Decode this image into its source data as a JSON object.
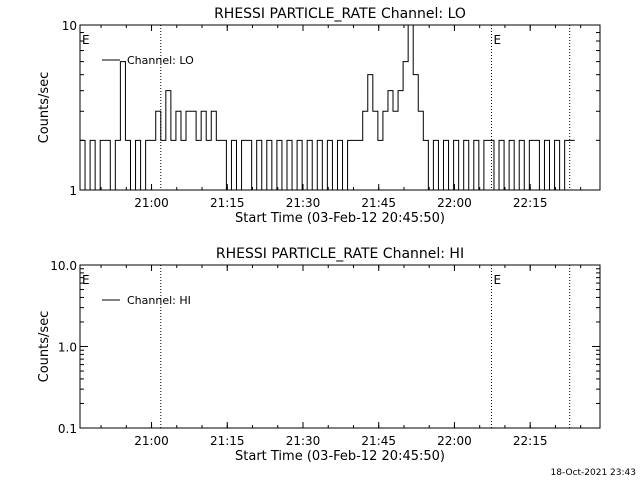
{
  "footer": {
    "timestamp": "18-Oct-2021 23:43"
  },
  "chart_data": [
    {
      "type": "line",
      "title": "RHESSI PARTICLE_RATE Channel: LO",
      "xlabel": "Start Time (03-Feb-12 20:45:50)",
      "ylabel": "Counts/sec",
      "x_unit": "minutes after 20:45:50",
      "xlim": [
        0,
        103
      ],
      "ylim": [
        1,
        10
      ],
      "y_scale": "log",
      "x_ticks": [
        {
          "value": 14.17,
          "label": "21:00"
        },
        {
          "value": 29.17,
          "label": "21:15"
        },
        {
          "value": 44.17,
          "label": "21:30"
        },
        {
          "value": 59.17,
          "label": "21:45"
        },
        {
          "value": 74.17,
          "label": "22:00"
        },
        {
          "value": 89.17,
          "label": "22:15"
        }
      ],
      "y_ticks": [
        {
          "value": 1,
          "label": "1"
        },
        {
          "value": 10,
          "label": "10"
        }
      ],
      "vlines": [
        16.0,
        81.5,
        97.0
      ],
      "markers": [
        {
          "x": 0.2,
          "label": "E"
        },
        {
          "x": 81.7,
          "label": "E"
        }
      ],
      "legend": {
        "position": "top-left",
        "label": "Channel: LO"
      },
      "series": [
        {
          "name": "Channel: LO",
          "x": [
            0,
            1,
            2,
            3,
            4,
            5,
            6,
            7,
            8,
            9,
            10,
            11,
            12,
            13,
            14,
            15,
            16,
            17,
            18,
            19,
            20,
            21,
            22,
            23,
            24,
            25,
            26,
            27,
            28,
            29,
            30,
            31,
            32,
            33,
            34,
            35,
            36,
            37,
            38,
            39,
            40,
            41,
            42,
            43,
            44,
            45,
            46,
            47,
            48,
            49,
            50,
            51,
            52,
            53,
            54,
            55,
            56,
            57,
            58,
            59,
            60,
            61,
            62,
            63,
            64,
            65,
            66,
            67,
            68,
            69,
            70,
            71,
            72,
            73,
            74,
            75,
            76,
            77,
            78,
            79,
            80,
            81,
            82,
            83,
            84,
            85,
            86,
            87,
            88,
            89,
            90,
            91,
            92,
            93,
            94,
            95,
            96,
            97
          ],
          "y": [
            2,
            1,
            2,
            1,
            2,
            2,
            1,
            2,
            6,
            2,
            1,
            2,
            1,
            2,
            2,
            3,
            2,
            4,
            2,
            3,
            2,
            3,
            3,
            2,
            3,
            2,
            3,
            2,
            2,
            1,
            2,
            1,
            2,
            2,
            1,
            2,
            1,
            2,
            1,
            2,
            1,
            2,
            1,
            2,
            1,
            2,
            1,
            2,
            1,
            2,
            1,
            2,
            1,
            2,
            2,
            2,
            3,
            5,
            3,
            2,
            3,
            4,
            3,
            4,
            6,
            10,
            5,
            3,
            2,
            1,
            2,
            1,
            2,
            1,
            2,
            1,
            2,
            1,
            2,
            1,
            2,
            2,
            1,
            2,
            1,
            2,
            1,
            2,
            1,
            2,
            2,
            1,
            2,
            1,
            2,
            1,
            2,
            2
          ]
        }
      ]
    },
    {
      "type": "line",
      "title": "RHESSI PARTICLE_RATE Channel: HI",
      "xlabel": "Start Time (03-Feb-12 20:45:50)",
      "ylabel": "Counts/sec",
      "x_unit": "minutes after 20:45:50",
      "xlim": [
        0,
        103
      ],
      "ylim": [
        0.1,
        10
      ],
      "y_scale": "log",
      "x_ticks": [
        {
          "value": 14.17,
          "label": "21:00"
        },
        {
          "value": 29.17,
          "label": "21:15"
        },
        {
          "value": 44.17,
          "label": "21:30"
        },
        {
          "value": 59.17,
          "label": "21:45"
        },
        {
          "value": 74.17,
          "label": "22:00"
        },
        {
          "value": 89.17,
          "label": "22:15"
        }
      ],
      "y_ticks": [
        {
          "value": 0.1,
          "label": "0.1"
        },
        {
          "value": 1,
          "label": "1.0"
        },
        {
          "value": 10,
          "label": "10.0"
        }
      ],
      "vlines": [
        16.0,
        81.5,
        97.0
      ],
      "markers": [
        {
          "x": 0.2,
          "label": "E"
        },
        {
          "x": 81.7,
          "label": "E"
        }
      ],
      "legend": {
        "position": "top-left",
        "label": "Channel: HI"
      },
      "series": [
        {
          "name": "Channel: HI",
          "x": [],
          "y": []
        }
      ]
    }
  ]
}
